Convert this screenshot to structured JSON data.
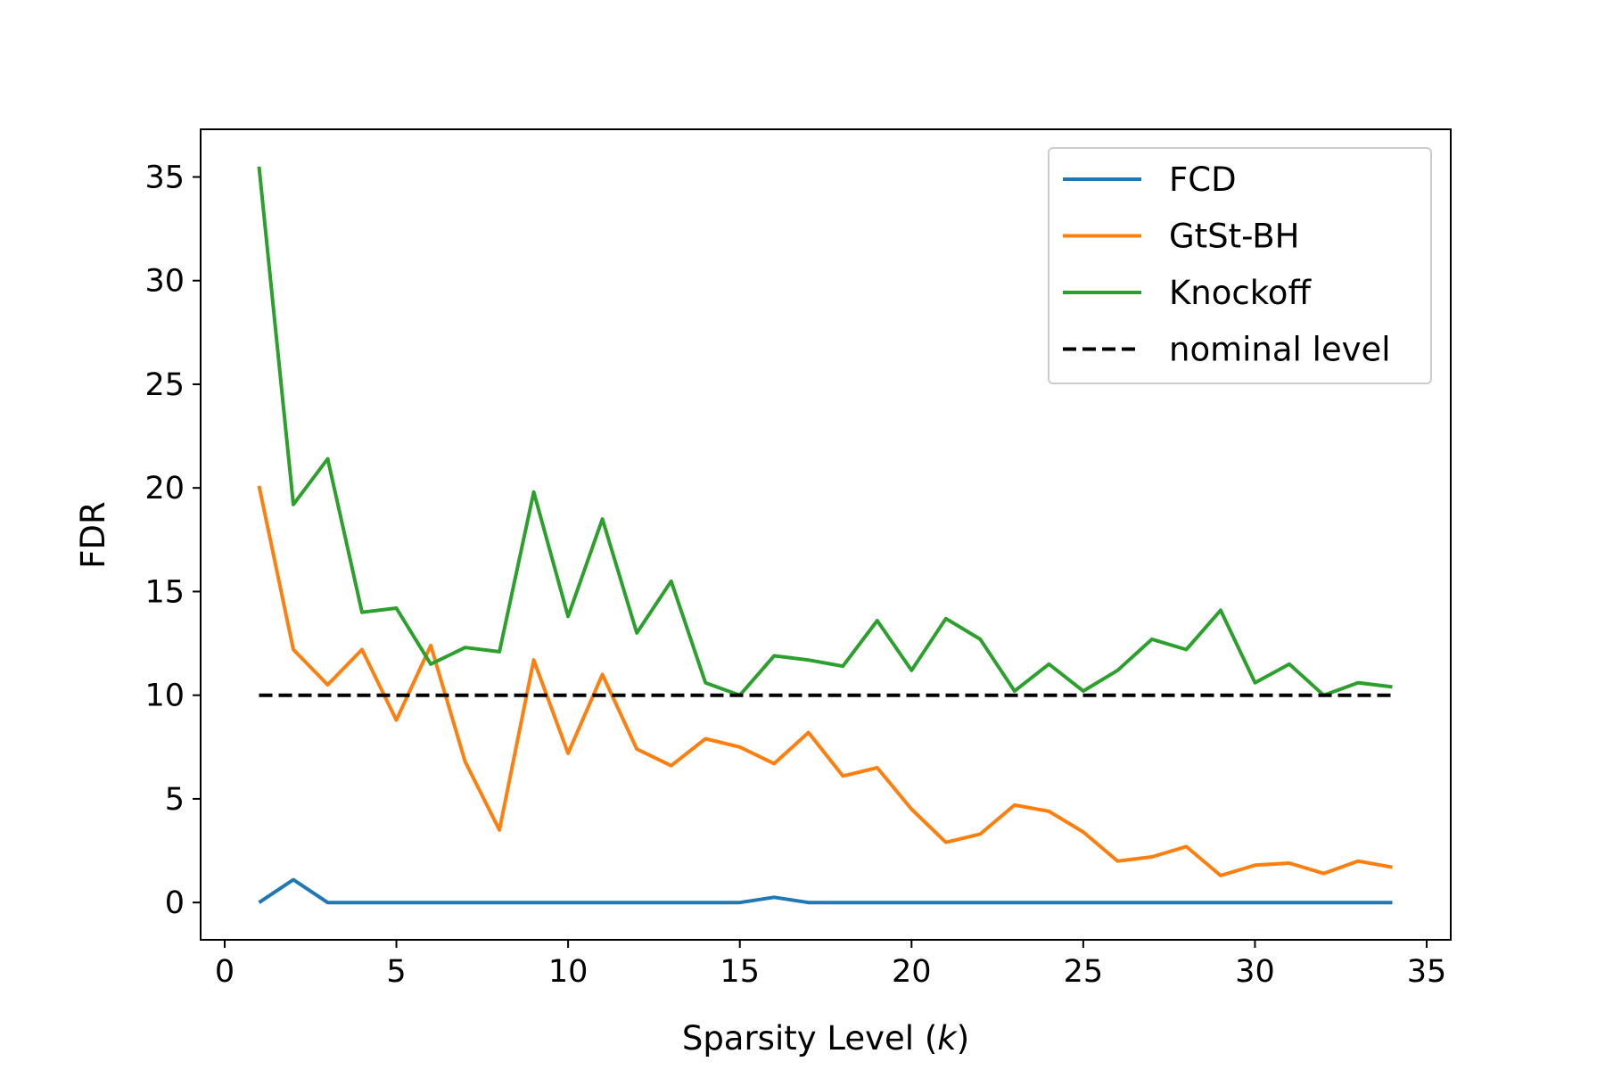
{
  "chart_data": {
    "type": "line",
    "title": "",
    "xlabel": "Sparsity Level (k)",
    "xlabel_parts": {
      "prefix": "Sparsity Level (",
      "var": "k",
      "suffix": ")"
    },
    "ylabel": "FDR",
    "xlim": [
      -0.7,
      35.7
    ],
    "ylim": [
      -1.8,
      37.3
    ],
    "xticks": [
      0,
      5,
      10,
      15,
      20,
      25,
      30,
      35
    ],
    "yticks": [
      0,
      5,
      10,
      15,
      20,
      25,
      30,
      35
    ],
    "grid": false,
    "legend_position": "top-right",
    "x": [
      1,
      2,
      3,
      4,
      5,
      6,
      7,
      8,
      9,
      10,
      11,
      12,
      13,
      14,
      15,
      16,
      17,
      18,
      19,
      20,
      21,
      22,
      23,
      24,
      25,
      26,
      27,
      28,
      29,
      30,
      31,
      32,
      33,
      34
    ],
    "series": [
      {
        "name": "FCD",
        "color": "#1f77b4",
        "dash": "solid",
        "values": [
          0,
          1.1,
          0,
          0,
          0,
          0,
          0,
          0,
          0,
          0,
          0,
          0,
          0,
          0,
          0,
          0.25,
          0,
          0,
          0,
          0,
          0,
          0,
          0,
          0,
          0,
          0,
          0,
          0,
          0,
          0,
          0,
          0,
          0,
          0
        ]
      },
      {
        "name": "GtSt-BH",
        "color": "#ff7f0e",
        "dash": "solid",
        "values": [
          20.1,
          12.2,
          10.5,
          12.2,
          8.8,
          12.4,
          6.8,
          3.5,
          11.7,
          7.2,
          11.0,
          7.4,
          6.6,
          7.9,
          7.5,
          6.7,
          8.2,
          6.1,
          6.5,
          4.5,
          2.9,
          3.3,
          4.7,
          4.4,
          3.4,
          2.0,
          2.2,
          2.7,
          1.3,
          1.8,
          1.9,
          1.4,
          2.0,
          1.7
        ]
      },
      {
        "name": "Knockoff",
        "color": "#2ca02c",
        "dash": "solid",
        "values": [
          35.5,
          19.2,
          21.4,
          14.0,
          14.2,
          11.5,
          12.3,
          12.1,
          19.8,
          13.8,
          18.5,
          13.0,
          15.5,
          10.6,
          10.0,
          11.9,
          11.7,
          11.4,
          13.6,
          11.2,
          13.7,
          12.7,
          10.2,
          11.5,
          10.2,
          11.2,
          12.7,
          12.2,
          14.1,
          10.6,
          11.5,
          10.0,
          10.6,
          10.4
        ]
      },
      {
        "name": "nominal level",
        "color": "#000000",
        "dash": "dashed",
        "values": [
          10,
          10,
          10,
          10,
          10,
          10,
          10,
          10,
          10,
          10,
          10,
          10,
          10,
          10,
          10,
          10,
          10,
          10,
          10,
          10,
          10,
          10,
          10,
          10,
          10,
          10,
          10,
          10,
          10,
          10,
          10,
          10,
          10,
          10
        ]
      }
    ]
  }
}
